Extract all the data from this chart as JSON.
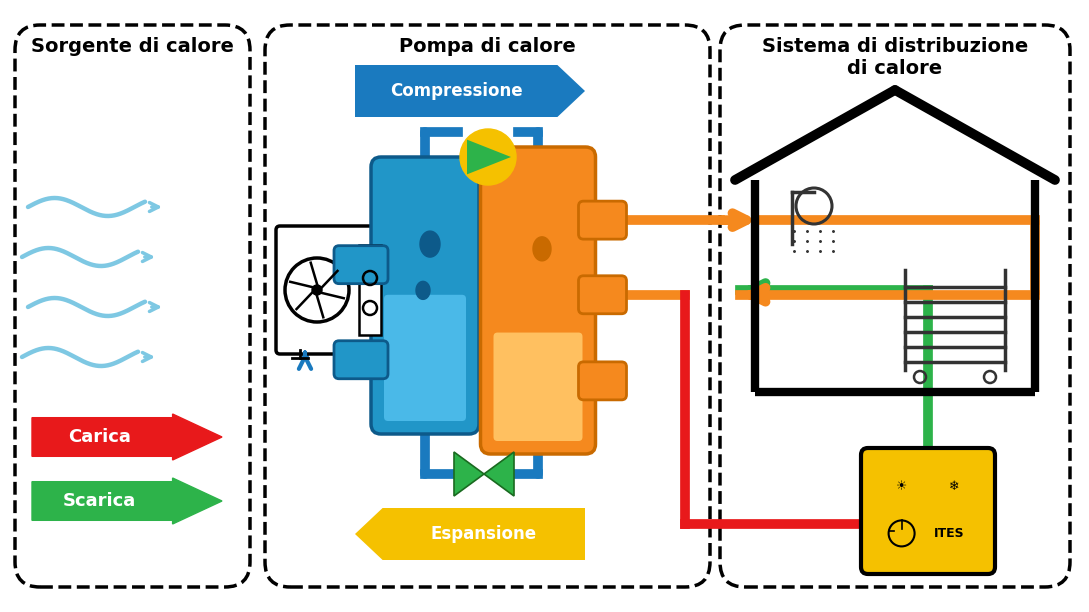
{
  "bg_color": "#ffffff",
  "title_left": "Sorgente di calore",
  "title_center": "Pompa di calore",
  "title_right": "Sistema di distribuzione\ndi calore",
  "label_compressione": "Compressione",
  "label_espansione": "Espansione",
  "label_carica": "Carica",
  "label_scarica": "Scarica",
  "color_blue": "#1a7abf",
  "color_blue2": "#2196c8",
  "color_blue_light": "#4ab9e8",
  "color_blue_dark": "#0d5a8a",
  "color_orange": "#f5891e",
  "color_orange2": "#e87020",
  "color_orange_dark": "#c96a00",
  "color_orange_light": "#ffc060",
  "color_green": "#2db34a",
  "color_red": "#e8191b",
  "color_yellow": "#f5c100",
  "wave_color": "#7ec8e3",
  "pipe_lw": 7,
  "font_title": 14,
  "font_label": 12
}
